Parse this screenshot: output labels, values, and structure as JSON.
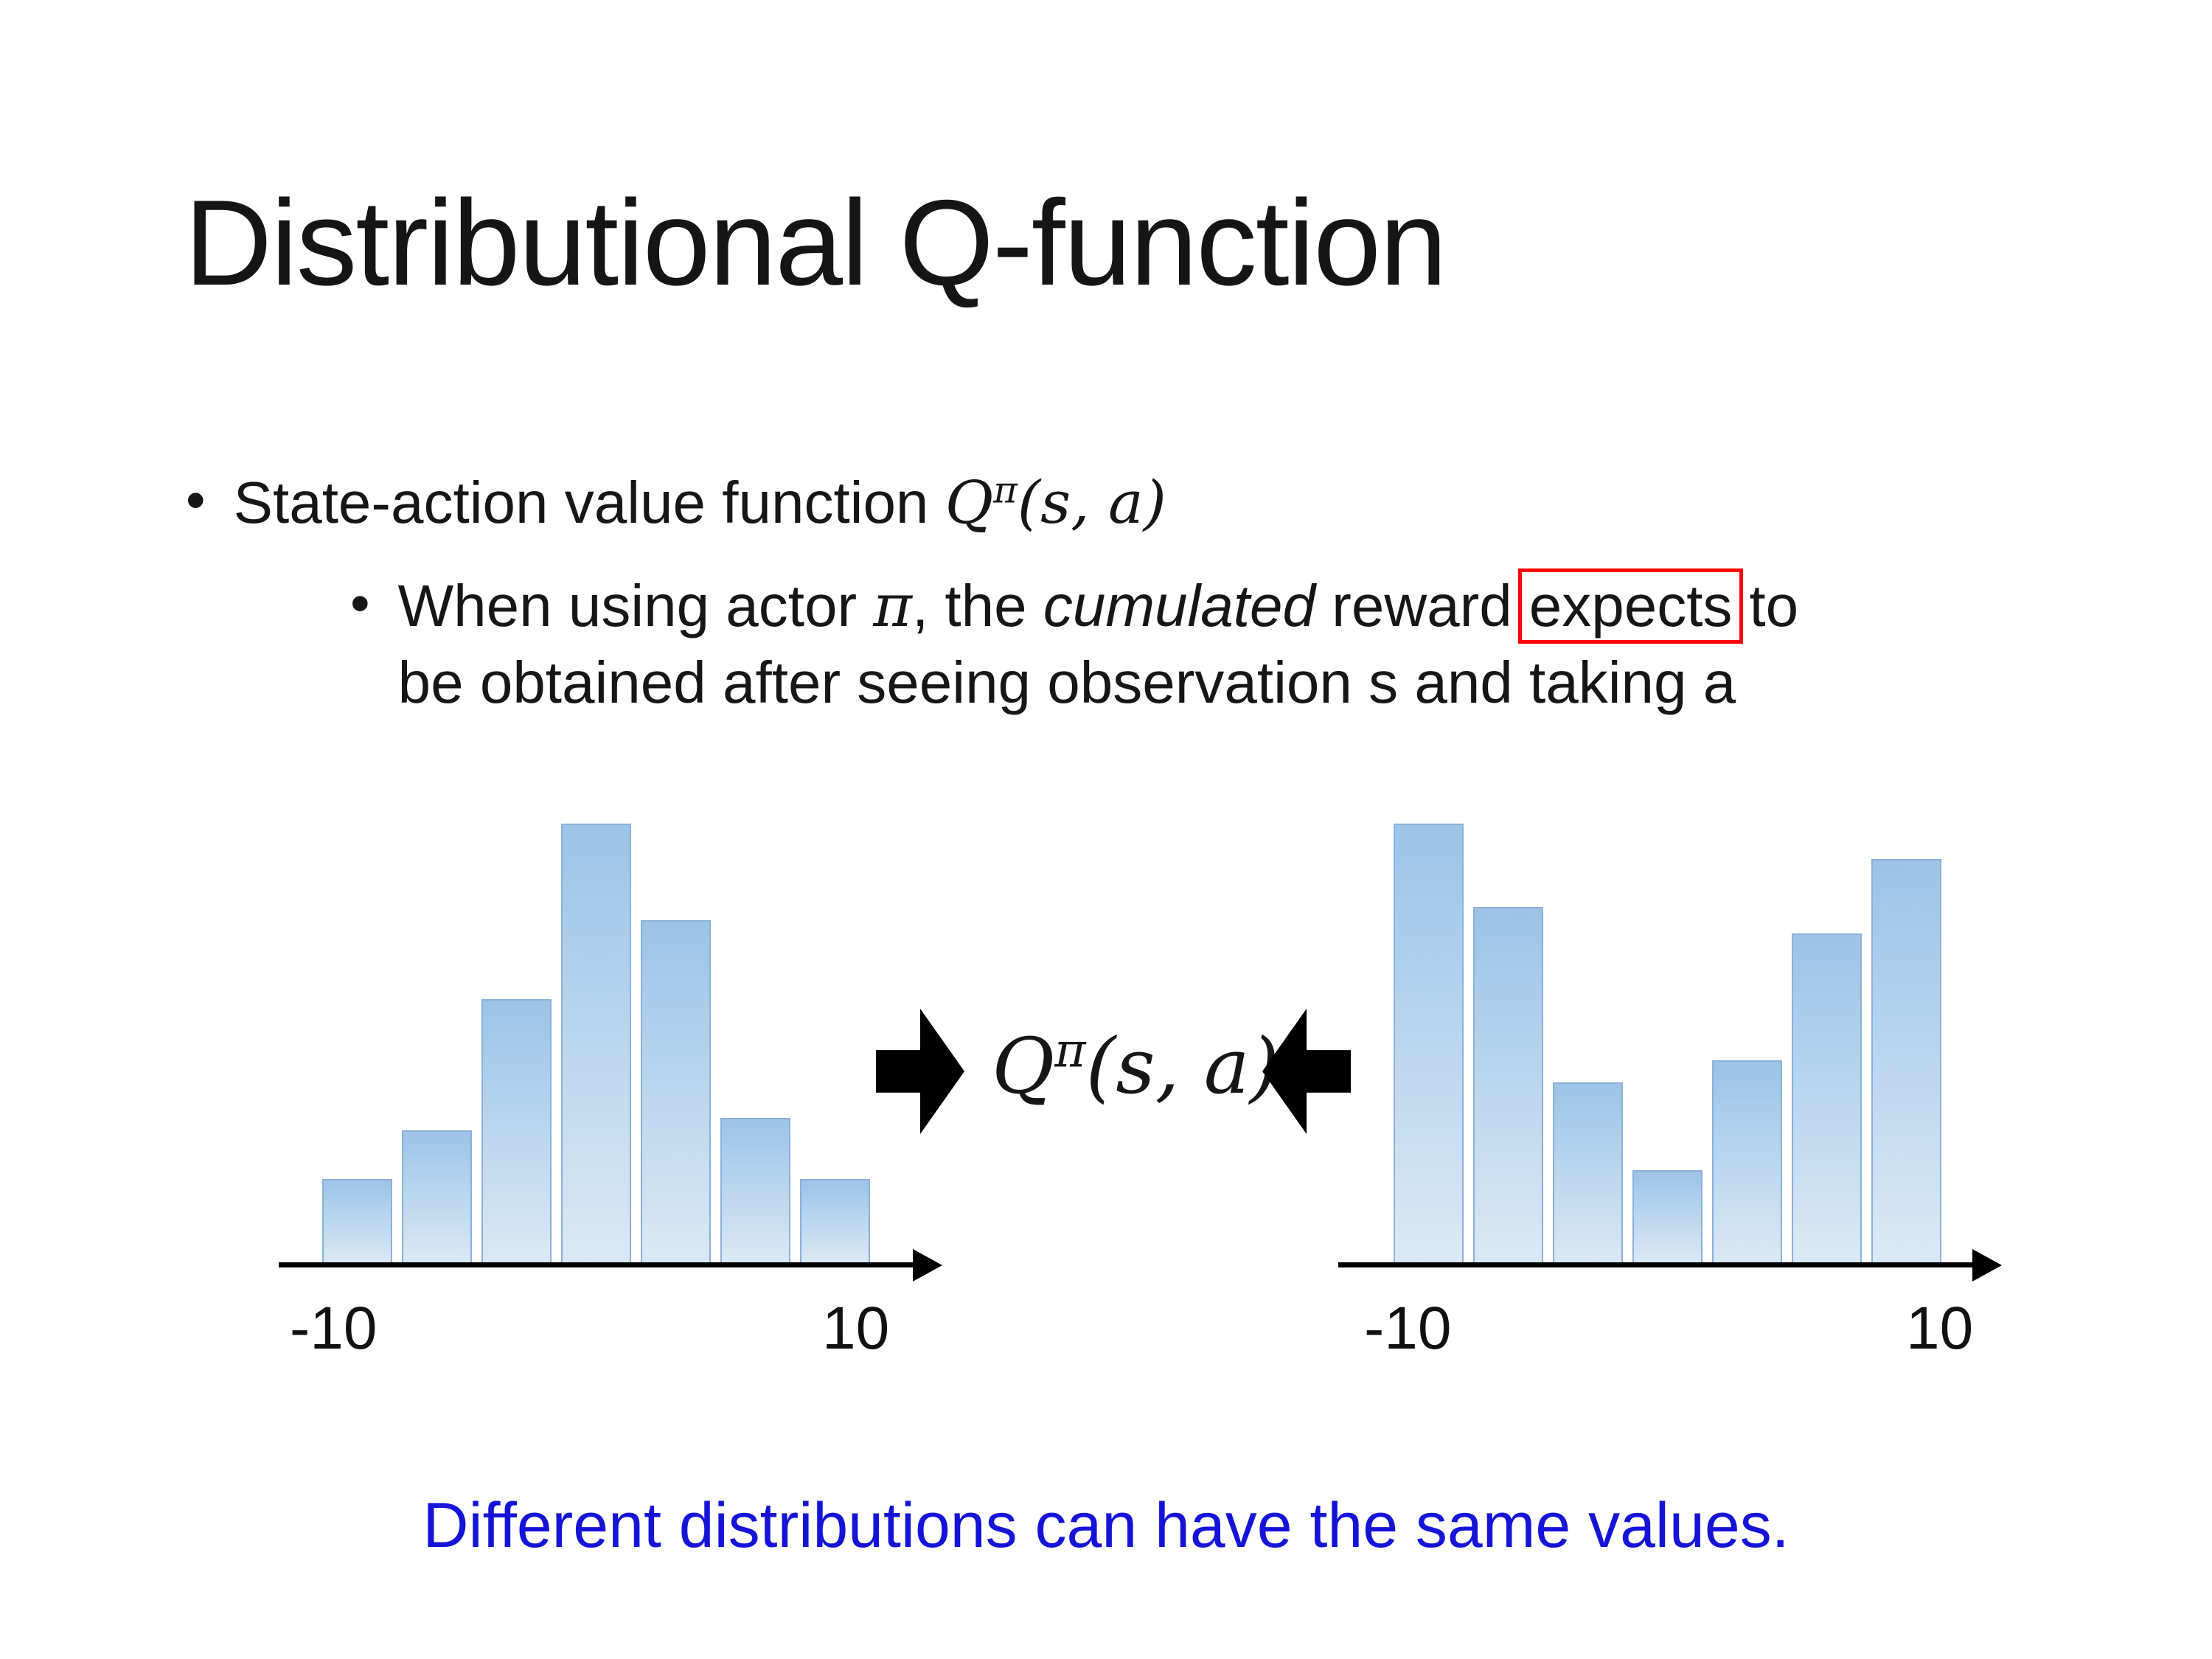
{
  "title": "Distributional Q-function",
  "bullet": {
    "marker": "•",
    "text": "State-action value function ",
    "math": {
      "q": "Q",
      "pi": "π",
      "args": "(s, a)"
    }
  },
  "sub_bullet": {
    "marker": "•",
    "part1": "When using actor ",
    "pi": "π",
    "part2": ", the ",
    "italic_word": "cumulated",
    "part3": " reward",
    "boxed_word": "expects",
    "part4": "to",
    "part5": "be obtained after seeing observation s and taking a"
  },
  "center": {
    "math": {
      "q": "Q",
      "pi": "π",
      "args": "(s, a)"
    }
  },
  "footer_note": "Different distributions can have the same values.",
  "colors": {
    "bar_top": "#9dc3e6",
    "bar_bottom": "#dae9f6",
    "bar_border": "#8ab1d9",
    "note_blue": "#1414d8",
    "box_red": "#ff0000"
  },
  "chart_data": [
    {
      "type": "bar",
      "title": "unimodal return distribution (left)",
      "x_range": [
        -10,
        10
      ],
      "xtick_labels": [
        "-10",
        "10"
      ],
      "values": [
        0.19,
        0.3,
        0.6,
        1.0,
        0.78,
        0.33,
        0.19
      ],
      "ylabel": "",
      "grid": false,
      "note": "y-axis unlabeled; values are relative bar heights"
    },
    {
      "type": "bar",
      "title": "bimodal return distribution (right)",
      "x_range": [
        -10,
        10
      ],
      "xtick_labels": [
        "-10",
        "10"
      ],
      "values": [
        1.0,
        0.81,
        0.41,
        0.21,
        0.46,
        0.75,
        0.92
      ],
      "ylabel": "",
      "grid": false,
      "note": "y-axis unlabeled; values are relative bar heights"
    }
  ]
}
